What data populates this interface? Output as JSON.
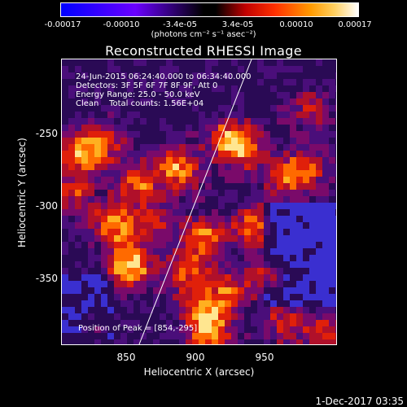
{
  "colorbar": {
    "ticks": [
      "-0.00017",
      "-0.00010",
      "-3.4e-05",
      "3.4e-05",
      "0.00010",
      "0.00017"
    ],
    "units": "(photons cm⁻² s⁻¹ asec⁻²)"
  },
  "title": "Reconstructed RHESSI Image",
  "info": {
    "time_range": "24-Jun-2015 06:24:40.000 to 06:34:40.000",
    "detectors": "Detectors: 3F 5F 6F 7F 8F 9F, Att 0",
    "energy": "Energy Range: 25.0 - 50.0 keV",
    "clean": "Clean    Total counts: 1.56E+04"
  },
  "peak": "Position of Peak = [854,-295]",
  "axes": {
    "xlabel": "Heliocentric X (arcsec)",
    "ylabel": "Heliocentric Y (arcsec)",
    "x_ticks": [
      "850",
      "900",
      "950"
    ],
    "y_ticks": [
      "-250",
      "-300",
      "-350"
    ]
  },
  "footer_date": "1-Dec-2017 03:35"
}
